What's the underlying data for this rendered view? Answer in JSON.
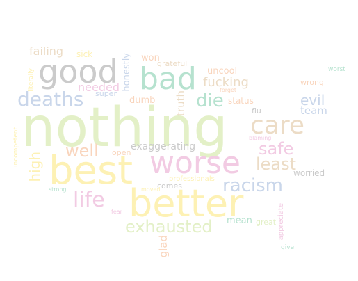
{
  "palette": {
    "green": "#e3f0c7",
    "yellow": "#fdf1b4",
    "pink": "#f2cbe3",
    "peach": "#f9d5bd",
    "blue": "#c9d6ea",
    "grey": "#cbcbcb",
    "mint": "#b6e2cf",
    "sand": "#ecdcc6"
  },
  "words": [
    {
      "text": "nothing",
      "color": "#e3f0c7"
    },
    {
      "text": "best",
      "color": "#fdf1b4"
    },
    {
      "text": "better",
      "color": "#fdf1b4"
    },
    {
      "text": "worse",
      "color": "#f2cbe3"
    },
    {
      "text": "good",
      "color": "#cbcbcb"
    },
    {
      "text": "bad",
      "color": "#b6e2cf"
    },
    {
      "text": "care",
      "color": "#ecdcc6"
    },
    {
      "text": "deaths",
      "color": "#c9d6ea"
    },
    {
      "text": "racism",
      "color": "#c9d6ea"
    },
    {
      "text": "life",
      "color": "#f2cbe3"
    },
    {
      "text": "exhausted",
      "color": "#e3f0c7"
    },
    {
      "text": "safe",
      "color": "#f2cbe3"
    },
    {
      "text": "least",
      "color": "#ecdcc6"
    },
    {
      "text": "die",
      "color": "#b6e2cf"
    },
    {
      "text": "evil",
      "color": "#c9d6ea"
    },
    {
      "text": "well",
      "color": "#f9d5bd"
    },
    {
      "text": "fucking",
      "color": "#ecdcc6"
    },
    {
      "text": "high",
      "color": "#fdf1b4"
    },
    {
      "text": "failing",
      "color": "#ecdcc6"
    },
    {
      "text": "honestly",
      "color": "#c9d6ea"
    },
    {
      "text": "needed",
      "color": "#f2cbe3"
    },
    {
      "text": "exaggerating",
      "color": "#cbcbcb"
    },
    {
      "text": "truth",
      "color": "#ecdcc6"
    },
    {
      "text": "team",
      "color": "#c9d6ea"
    },
    {
      "text": "glad",
      "color": "#f9d5bd"
    },
    {
      "text": "won",
      "color": "#f9d5bd"
    },
    {
      "text": "uncool",
      "color": "#f9d5bd"
    },
    {
      "text": "grateful",
      "color": "#ecdcc6"
    },
    {
      "text": "sick",
      "color": "#fdf1b4"
    },
    {
      "text": "dumb",
      "color": "#f9d5bd"
    },
    {
      "text": "status",
      "color": "#f9d5bd"
    },
    {
      "text": "mean",
      "color": "#b6e2cf"
    },
    {
      "text": "wrong",
      "color": "#f9d5bd"
    },
    {
      "text": "worried",
      "color": "#cbcbcb"
    },
    {
      "text": "super",
      "color": "#c9d6ea"
    },
    {
      "text": "flu",
      "color": "#cbcbcb"
    },
    {
      "text": "open",
      "color": "#f9d5bd"
    },
    {
      "text": "comes",
      "color": "#cbcbcb"
    },
    {
      "text": "professionals",
      "color": "#fdf1b4"
    },
    {
      "text": "great",
      "color": "#e3f0c7"
    },
    {
      "text": "appreciate",
      "color": "#f2cbe3"
    },
    {
      "text": "literally",
      "color": "#fdf1b4"
    },
    {
      "text": "incompetent",
      "color": "#fdf1b4"
    },
    {
      "text": "worst",
      "color": "#b6e2cf"
    },
    {
      "text": "forget",
      "color": "#f9d5bd"
    },
    {
      "text": "blaming",
      "color": "#f2cbe3"
    },
    {
      "text": "strong",
      "color": "#b6e2cf"
    },
    {
      "text": "moved",
      "color": "#fdf1b4"
    },
    {
      "text": "give",
      "color": "#b6e2cf"
    },
    {
      "text": "fear",
      "color": "#f2cbe3"
    }
  ]
}
